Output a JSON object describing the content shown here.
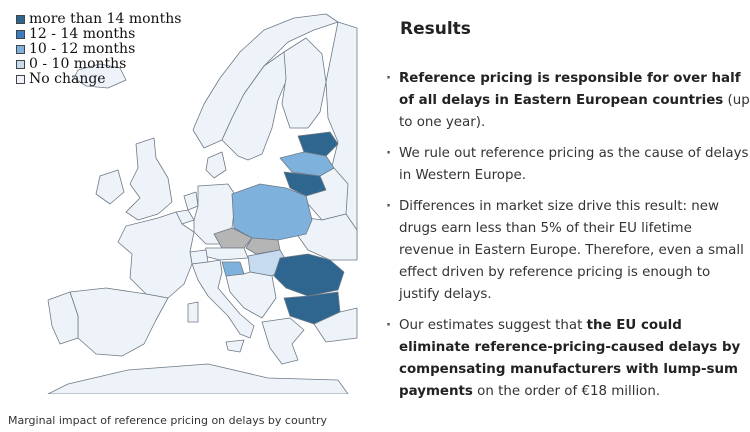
{
  "map": {
    "legend": [
      {
        "label": "more than 14 months",
        "color": "#2f6690"
      },
      {
        "label": "12 - 14 months",
        "color": "#3a7cbf"
      },
      {
        "label": "10 - 12 months",
        "color": "#7fb1dd"
      },
      {
        "label": "0 - 10 months",
        "color": "#c6dbef"
      },
      {
        "label": "No change",
        "color": "#eef3f9"
      }
    ],
    "colors": {
      "more_than_14": "#2f6690",
      "twelve_fourteen": "#3a7cbf",
      "ten_twelve": "#7fb1dd",
      "zero_ten": "#c6dbef",
      "no_change": "#eef3f9",
      "no_data": "#b5b5b5",
      "border": "#6e7a86"
    },
    "caption": "Marginal impact of reference pricing on delays by country"
  },
  "results": {
    "title": "Results",
    "bullets": [
      {
        "bold": "Reference pricing is responsible for over half of all delays in Eastern European countries",
        "after": " (up to one year)."
      },
      {
        "text": "We rule out reference pricing as the cause of delays in Western Europe."
      },
      {
        "text": "Differences in market size drive this result: new drugs earn less than 5% of their EU lifetime revenue in Eastern Europe. Therefore, even a small effect driven by reference pricing is enough to justify delays."
      },
      {
        "before": "Our estimates suggest that ",
        "bold": "the EU could eliminate reference-pricing-caused delays by compensating manufacturers with lump-sum payments",
        "after": " on the order of €18 million."
      }
    ]
  }
}
